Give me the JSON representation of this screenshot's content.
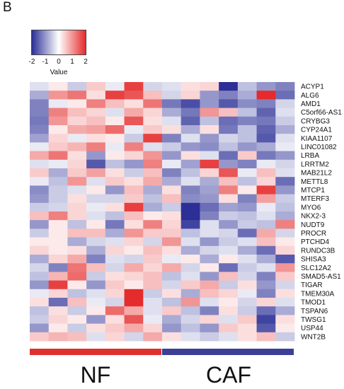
{
  "panel_label": "B",
  "colors": {
    "low": "#2b2f96",
    "mid": "#ffffff",
    "high": "#e52b2b"
  },
  "chart_data": {
    "type": "heatmap",
    "legend": {
      "title": "Value",
      "ticks": [
        "-2",
        "-1",
        "0",
        "1",
        "2"
      ],
      "min": -2,
      "max": 2
    },
    "rows": [
      "ACYP1",
      "ALG6",
      "AMD1",
      "C5orf66-AS1",
      "CRYBG3",
      "CYP24A1",
      "KIAA1107",
      "LINC01082",
      "LRBA",
      "LRRTM2",
      "MAB21L2",
      "METTL8",
      "MTCP1",
      "MTERF3",
      "MYO6",
      "NKX2-3",
      "NUDT9",
      "PROCR",
      "PTCHD4",
      "RUNDC3B",
      "SHISA3",
      "SLC12A2",
      "SMAD5-AS1",
      "TIGAR",
      "TMEM30A",
      "TMOD1",
      "TSPAN6",
      "TWSG1",
      "USP44",
      "WNT2B"
    ],
    "groups": [
      {
        "label": "NF",
        "color": "#e0302e",
        "n_columns": 7
      },
      {
        "label": "CAF",
        "color": "#3b3f96",
        "n_columns": 7
      }
    ],
    "values": [
      [
        -0.3,
        0.2,
        -0.5,
        0.5,
        -0.2,
        1.8,
        -0.4,
        -0.3,
        0.3,
        0.4,
        -2.0,
        -0.6,
        -1.0,
        -1.2
      ],
      [
        -0.8,
        1.0,
        1.3,
        0.3,
        1.8,
        1.6,
        0.6,
        -0.4,
        0.4,
        -1.0,
        -1.2,
        -0.8,
        2.0,
        -1.4
      ],
      [
        -1.2,
        -0.2,
        0.2,
        1.2,
        0.6,
        0.3,
        1.3,
        -1.3,
        -1.7,
        -1.0,
        -1.6,
        -1.1,
        -1.2,
        -0.4
      ],
      [
        -1.2,
        1.2,
        0.6,
        0.4,
        -0.3,
        0.8,
        0.4,
        -0.8,
        -1.3,
        1.0,
        0.6,
        -0.6,
        -1.5,
        -0.3
      ],
      [
        -1.3,
        1.0,
        0.4,
        0.6,
        0.2,
        1.6,
        0.3,
        -0.3,
        -1.5,
        -0.6,
        -1.4,
        -1.2,
        -1.3,
        -0.5
      ],
      [
        -1.2,
        0.2,
        0.8,
        0.9,
        1.4,
        -0.2,
        0.5,
        0.3,
        -0.8,
        0.3,
        -1.3,
        -0.6,
        -1.5,
        -0.8
      ],
      [
        -0.9,
        0.4,
        -0.2,
        0.3,
        0.2,
        -0.5,
        1.8,
        -1.2,
        -0.3,
        -1.0,
        -0.4,
        -0.6,
        -1.6,
        -0.3
      ],
      [
        -0.2,
        0.5,
        0.7,
        1.2,
        -0.2,
        1.2,
        -0.3,
        -0.5,
        -1.0,
        -1.1,
        -0.6,
        -1.0,
        -0.8,
        -0.2
      ],
      [
        0.8,
        1.3,
        0.3,
        -1.0,
        0.2,
        0.4,
        1.0,
        -1.0,
        0.3,
        -0.3,
        -1.4,
        0.5,
        -1.3,
        -1.0
      ],
      [
        -0.3,
        -0.2,
        0.4,
        -1.6,
        -0.6,
        -1.0,
        1.2,
        -0.2,
        -0.9,
        1.8,
        -1.0,
        -1.2,
        -0.2,
        -0.4
      ],
      [
        0.5,
        -0.8,
        0.5,
        0.9,
        0.3,
        -0.5,
        0.6,
        -1.2,
        -0.6,
        0.4,
        1.6,
        -0.2,
        0.6,
        -0.3
      ],
      [
        -0.2,
        -0.6,
        1.0,
        -0.3,
        0.5,
        0.3,
        0.8,
        -0.8,
        -0.3,
        -0.8,
        0.6,
        -0.6,
        0.4,
        -1.4
      ],
      [
        -1.1,
        -0.5,
        -0.3,
        0.2,
        -1.0,
        0.6,
        -0.8,
        0.3,
        -1.2,
        -0.9,
        1.2,
        0.2,
        1.8,
        -1.0
      ],
      [
        -1.0,
        -0.5,
        0.3,
        -0.4,
        -0.4,
        0.5,
        -0.6,
        0.6,
        -1.1,
        -1.0,
        0.3,
        -1.2,
        0.9,
        -0.5
      ],
      [
        -0.5,
        -0.4,
        0.4,
        -0.2,
        0.3,
        1.8,
        -0.8,
        -0.5,
        -2.0,
        -1.4,
        -0.9,
        -1.0,
        -0.2,
        -0.6
      ],
      [
        0.6,
        1.2,
        0.4,
        -0.3,
        -0.6,
        0.6,
        0.2,
        0.3,
        -2.0,
        -1.2,
        -0.5,
        -0.6,
        -0.3,
        -0.8
      ],
      [
        -1.0,
        0.2,
        -0.6,
        0.2,
        -1.3,
        0.3,
        1.2,
        0.4,
        -1.8,
        -0.3,
        -1.0,
        -0.5,
        -0.6,
        1.2
      ],
      [
        -0.5,
        0.2,
        0.6,
        0.6,
        -0.8,
        1.0,
        0.5,
        0.5,
        -0.6,
        -0.3,
        -0.4,
        -1.4,
        0.8,
        -0.4
      ],
      [
        0.2,
        0.2,
        -0.8,
        -0.4,
        -0.3,
        0.4,
        -0.4,
        1.0,
        -0.3,
        -1.0,
        -0.5,
        -0.3,
        0.6,
        0.2
      ],
      [
        0.4,
        0.2,
        0.3,
        -0.8,
        0.4,
        0.2,
        0.6,
        0.3,
        -0.8,
        -0.4,
        -0.3,
        -0.8,
        -1.4,
        0.4
      ],
      [
        -0.8,
        0.4,
        0.8,
        -1.2,
        -0.3,
        -0.4,
        0.5,
        -0.2,
        0.2,
        -0.8,
        0.2,
        -0.3,
        -0.8,
        -1.6
      ],
      [
        -0.4,
        -1.2,
        1.3,
        0.6,
        -0.4,
        0.8,
        0.4,
        0.8,
        -0.4,
        0.2,
        -1.4,
        -0.5,
        -0.3,
        1.0
      ],
      [
        -0.6,
        0.7,
        1.4,
        -0.5,
        0.3,
        0.4,
        0.6,
        -0.6,
        -0.3,
        -1.0,
        0.6,
        -0.4,
        -1.2,
        0.5
      ],
      [
        -1.0,
        1.8,
        0.2,
        -1.0,
        0.5,
        0.2,
        0.6,
        -0.4,
        0.5,
        0.8,
        -0.5,
        0.3,
        -1.0,
        -0.4
      ],
      [
        -0.2,
        0.4,
        -0.6,
        -0.3,
        0.4,
        2.0,
        -0.5,
        0.3,
        -0.8,
        0.6,
        0.4,
        -0.2,
        -1.2,
        0.3
      ],
      [
        0.3,
        -1.4,
        0.6,
        -0.2,
        -0.4,
        2.0,
        -0.3,
        -0.6,
        1.0,
        -0.3,
        0.2,
        -0.4,
        0.4,
        -0.3
      ],
      [
        -0.6,
        0.3,
        -0.5,
        0.2,
        1.4,
        0.8,
        -0.3,
        0.5,
        -0.6,
        -1.2,
        0.3,
        -0.5,
        -1.4,
        -0.8
      ],
      [
        -0.5,
        0.4,
        0.2,
        -1.0,
        0.3,
        1.6,
        -0.2,
        -0.8,
        -0.4,
        0.4,
        -0.3,
        0.5,
        -1.8,
        0.3
      ],
      [
        -1.0,
        0.2,
        -0.5,
        0.3,
        0.5,
        0.8,
        0.4,
        -1.0,
        -0.6,
        -1.0,
        0.5,
        0.3,
        -1.6,
        0.2
      ],
      [
        0.5,
        0.7,
        0.6,
        -0.3,
        0.4,
        -0.4,
        0.8,
        0.3,
        -0.3,
        -0.5,
        -0.3,
        0.3,
        0.6,
        -0.5
      ]
    ]
  }
}
